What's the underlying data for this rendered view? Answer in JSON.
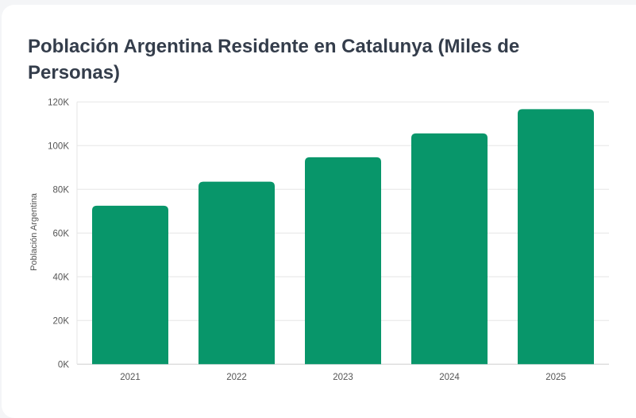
{
  "chart_data": {
    "type": "bar",
    "title": "Población Argentina Residente en Catalunya (Miles de Personas)",
    "xlabel": "",
    "ylabel": "Población Argentina",
    "categories": [
      "2021",
      "2022",
      "2023",
      "2024",
      "2025"
    ],
    "values": [
      72500,
      83500,
      94700,
      105600,
      116700
    ],
    "ylim": [
      0,
      120000
    ],
    "yticks": [
      0,
      20000,
      40000,
      60000,
      80000,
      100000,
      120000
    ],
    "ytick_labels": [
      "0K",
      "20K",
      "40K",
      "60K",
      "80K",
      "100K",
      "120K"
    ],
    "grid": true,
    "legend": "none",
    "bar_color": "#08966a"
  }
}
